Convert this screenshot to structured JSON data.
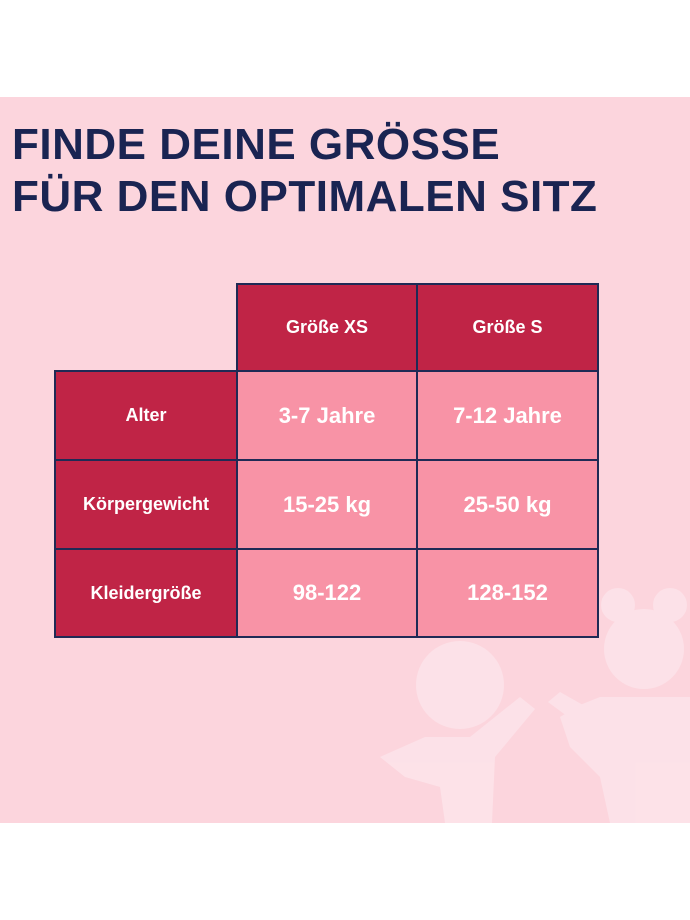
{
  "headline": {
    "line1": "FINDE DEINE GRÖSSE",
    "line2": "FÜR DEN OPTIMALEN SITZ"
  },
  "table": {
    "columns": [
      "Größe XS",
      "Größe S"
    ],
    "rows": [
      {
        "label": "Alter",
        "values": [
          "3-7 Jahre",
          "7-12 Jahre"
        ]
      },
      {
        "label": "Körpergewicht",
        "values": [
          "15-25 kg",
          "25-50 kg"
        ]
      },
      {
        "label": "Kleidergröße",
        "values": [
          "98-122",
          "128-152"
        ]
      }
    ]
  },
  "colors": {
    "background": "#fcd5dd",
    "header_cell": "#c02446",
    "value_cell": "#f893a6",
    "grid": "#1f2a55",
    "headline": "#1a2452",
    "figures": "#ffffff"
  },
  "decoration": {
    "icon": "children-silhouette-icon"
  }
}
